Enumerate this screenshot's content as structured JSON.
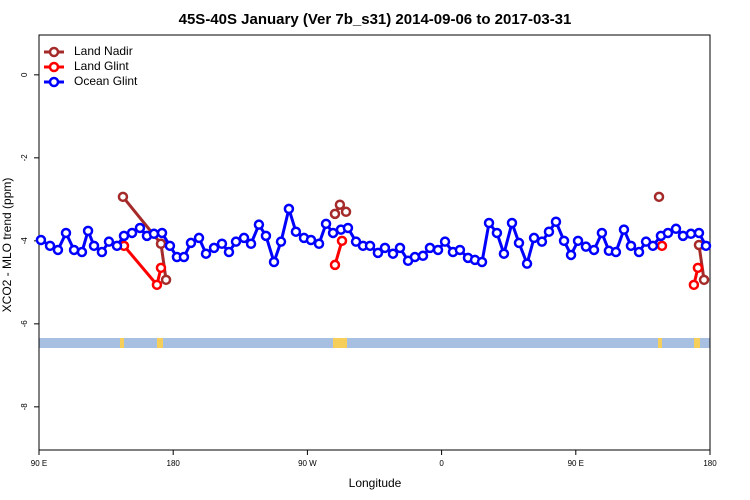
{
  "chart_data": {
    "type": "line",
    "title": "45S-40S January (Ver 7b_s31)   2014-09-06 to 2017-03-31",
    "x_label": "Longitude",
    "y_label": "XCO2 - MLO trend (ppm)",
    "xlim": [
      90,
      540
    ],
    "ylim": [
      -9.04,
      0.96
    ],
    "xticks": [
      {
        "value": 90,
        "label": "90 E"
      },
      180,
      {
        "value": 270,
        "label": "90 W"
      },
      {
        "value": 360,
        "label": "0"
      },
      {
        "value": 450,
        "label": "90 E"
      },
      {
        "value": 540,
        "label": "180"
      }
    ],
    "yticks": [
      -8,
      -6,
      -4,
      -2,
      0
    ],
    "legend": "top-left",
    "series": [
      {
        "name": "Land Nadir",
        "color": "#a52a2a",
        "x": [
          146.3,
          171.8,
          175.2,
          null,
          288.5,
          291.8,
          295.9,
          null,
          505.8,
          null,
          532.6,
          536.0
        ],
        "values": [
          -2.94,
          -4.07,
          -4.94,
          null,
          -3.35,
          -3.13,
          -3.3,
          null,
          -2.94,
          null,
          -4.1,
          -4.94
        ]
      },
      {
        "name": "Land Glint",
        "color": "#ff0000",
        "x": [
          147.0,
          169.1,
          171.8,
          null,
          288.5,
          293.2,
          null,
          507.8,
          null,
          529.2,
          531.9
        ],
        "values": [
          -4.12,
          -5.06,
          -4.65,
          null,
          -4.58,
          -4.0,
          null,
          -4.12,
          null,
          -5.06,
          -4.65
        ]
      },
      {
        "name": "Ocean Glint",
        "color": "#0000ff",
        "x": [
          91.3,
          97.4,
          102.7,
          108.1,
          113.5,
          118.8,
          122.9,
          126.9,
          132.2,
          136.9,
          142.3,
          147.0,
          152.4,
          157.7,
          162.4,
          167.1,
          172.5,
          177.8,
          182.5,
          187.2,
          191.9,
          197.3,
          202.0,
          207.4,
          212.7,
          217.4,
          222.1,
          227.5,
          232.2,
          237.5,
          242.2,
          247.6,
          252.3,
          257.6,
          262.3,
          267.7,
          272.4,
          277.8,
          282.5,
          287.2,
          292.5,
          297.2,
          302.6,
          307.3,
          312.0,
          317.3,
          322.0,
          327.4,
          332.1,
          337.5,
          342.1,
          347.5,
          352.2,
          357.6,
          362.3,
          367.6,
          372.3,
          377.7,
          382.4,
          387.1,
          391.8,
          397.1,
          401.8,
          407.2,
          411.9,
          417.3,
          422.0,
          427.3,
          432.0,
          436.7,
          442.1,
          446.8,
          451.5,
          456.8,
          462.2,
          467.5,
          472.2,
          476.9,
          482.3,
          487.0,
          492.4,
          497.1,
          501.7,
          507.1,
          511.8,
          517.2,
          521.9,
          527.2,
          532.6,
          537.3
        ],
        "values": [
          -3.98,
          -4.12,
          -4.22,
          -3.81,
          -4.22,
          -4.27,
          -3.76,
          -4.12,
          -4.27,
          -4.02,
          -4.12,
          -3.88,
          -3.81,
          -3.69,
          -3.88,
          -3.83,
          -3.81,
          -4.12,
          -4.39,
          -4.39,
          -4.05,
          -3.93,
          -4.31,
          -4.17,
          -4.07,
          -4.27,
          -4.02,
          -3.93,
          -4.07,
          -3.61,
          -3.88,
          -4.51,
          -4.02,
          -3.23,
          -3.78,
          -3.93,
          -3.98,
          -4.07,
          -3.59,
          -3.81,
          -3.73,
          -3.69,
          -4.02,
          -4.12,
          -4.12,
          -4.29,
          -4.17,
          -4.31,
          -4.17,
          -4.48,
          -4.39,
          -4.36,
          -4.17,
          -4.22,
          -4.02,
          -4.27,
          -4.22,
          -4.41,
          -4.46,
          -4.51,
          -3.57,
          -3.81,
          -4.31,
          -3.57,
          -4.05,
          -4.55,
          -3.93,
          -4.02,
          -3.78,
          -3.54,
          -4.0,
          -4.34,
          -4.0,
          -4.14,
          -4.22,
          -3.81,
          -4.24,
          -4.27,
          -3.73,
          -4.12,
          -4.27,
          -4.02,
          -4.12,
          -3.88,
          -3.81,
          -3.71,
          -3.88,
          -3.83,
          -3.81,
          -4.12
        ]
      }
    ]
  }
}
